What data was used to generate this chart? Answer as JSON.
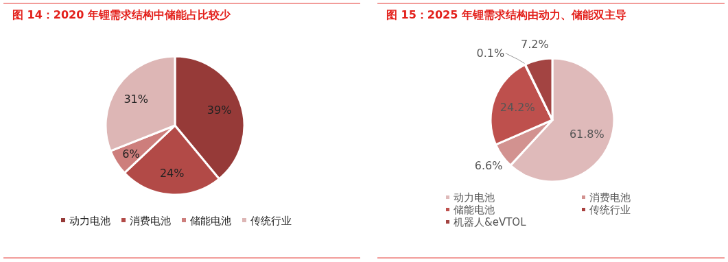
{
  "chart_data": [
    {
      "type": "pie",
      "title": "图 14：2020 年锂需求结构中储能占比较少",
      "categories": [
        "动力电池",
        "消费电池",
        "储能电池",
        "传统行业"
      ],
      "values": [
        39,
        24,
        6,
        31
      ],
      "colors": [
        "#963a38",
        "#b24a47",
        "#cd7e7c",
        "#ddb6b5"
      ],
      "value_labels": [
        "39%",
        "24%",
        "6%",
        "31%"
      ],
      "legend": "bottom"
    },
    {
      "type": "pie",
      "title": "图 15：2025 年锂需求结构由动力、储能双主导",
      "categories": [
        "动力电池",
        "消费电池",
        "储能电池",
        "传统行业",
        "机器人&eVTOL"
      ],
      "values": [
        61.8,
        6.6,
        24.2,
        0.1,
        7.2
      ],
      "colors": [
        "#dfbaba",
        "#d29290",
        "#be504d",
        "#a8403e",
        "#a34442"
      ],
      "value_labels": [
        "61.8%",
        "6.6%",
        "24.2%",
        "0.1%",
        "7.2%"
      ],
      "legend": "bottom"
    }
  ]
}
